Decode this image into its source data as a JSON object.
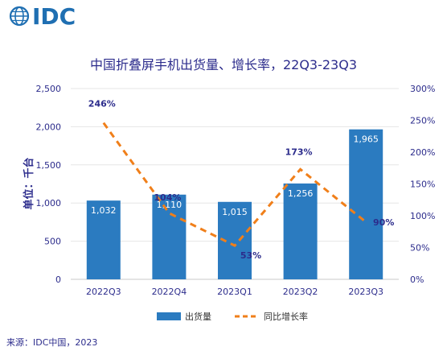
{
  "brand": {
    "name": "IDC",
    "color": "#1f6fb2"
  },
  "source": "来源：IDC中国，2023",
  "chart_data": {
    "type": "bar",
    "title": "中国折叠屏手机出货量、增长率，22Q3-23Q3",
    "ylabel": "单位：千台",
    "categories": [
      "2022Q3",
      "2022Q4",
      "2023Q1",
      "2023Q2",
      "2023Q3"
    ],
    "ylim": [
      0,
      2500
    ],
    "yticks": [
      "0",
      "500",
      "1,000",
      "1,500",
      "2,000",
      "2,500"
    ],
    "y2lim": [
      0,
      300
    ],
    "y2ticks": [
      "0%",
      "50%",
      "100%",
      "150%",
      "200%",
      "250%",
      "300%"
    ],
    "grid": true,
    "legend_position": "bottom",
    "series": [
      {
        "name": "出货量",
        "type": "bar",
        "color": "#2b7bc0",
        "values": [
          1032,
          1110,
          1015,
          1256,
          1965
        ],
        "labels": [
          "1,032",
          "1,110",
          "1,015",
          "1,256",
          "1,965"
        ]
      },
      {
        "name": "同比增长率",
        "type": "line",
        "color": "#f07f1a",
        "axis": "right",
        "values": [
          246,
          104,
          53,
          173,
          90
        ],
        "labels": [
          "246%",
          "104%",
          "53%",
          "173%",
          "90%"
        ]
      }
    ]
  }
}
